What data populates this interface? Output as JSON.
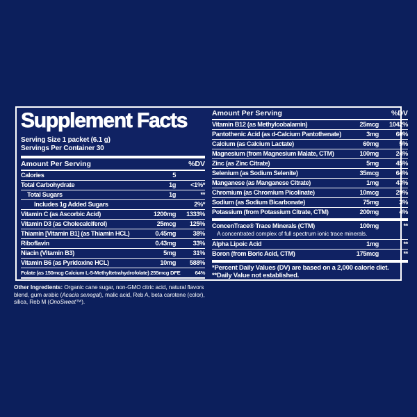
{
  "colors": {
    "background": "#0c1f5c",
    "panel_background": "#102263",
    "border_and_rules": "#ffffff",
    "text": "#ffffff"
  },
  "label": {
    "title": "Supplement Facts",
    "serving_size": "Serving Size 1 packet (6.1 g)",
    "servings_per_container": "Servings Per Container 30",
    "left_table": {
      "amount_header": "Amount Per Serving",
      "dv_header": "%DV",
      "rows": [
        {
          "name": "Calories",
          "amount": "5",
          "dv": ""
        },
        {
          "name": "Total Carbohydrate",
          "amount": "1g",
          "dv": "<1%*"
        },
        {
          "name": "Total Sugars",
          "amount": "1g",
          "dv": "**",
          "indent": 1
        },
        {
          "name": "Includes 1g Added Sugars",
          "amount": "",
          "dv": "2%*",
          "indent": 2
        },
        {
          "name": "Vitamin C (as Ascorbic Acid)",
          "amount": "1200mg",
          "dv": "1333%"
        },
        {
          "name": "Vitamin D3 (as Cholecalciferol)",
          "amount": "25mcg",
          "dv": "125%"
        },
        {
          "name": "Thiamin [Vitamin B1] (as Thiamin HCL)",
          "amount": "0.45mg",
          "dv": "38%"
        },
        {
          "name": "Riboflavin",
          "amount": "0.43mg",
          "dv": "33%"
        },
        {
          "name": "Niacin (Vitamin B3)",
          "amount": "5mg",
          "dv": "31%"
        },
        {
          "name": "Vitamin B6 (as Pyridoxine HCL)",
          "amount": "10mg",
          "dv": "588%"
        },
        {
          "name": "Folate (as 150mcg Calcium L-5-Methyltetrahydrofolate) 255mcg DFE",
          "amount": "",
          "dv": "64%",
          "small": true
        }
      ]
    },
    "right_table": {
      "amount_header": "Amount Per Serving",
      "dv_header": "%DV",
      "rows": [
        {
          "name": "Vitamin B12 (as Methylcobalamin)",
          "amount": "25mcg",
          "dv": "1042%"
        },
        {
          "name": "Pantothenic Acid (as d-Calcium Pantothenate)",
          "amount": "3mg",
          "dv": "60%"
        },
        {
          "name": "Calcium (as Calcium Lactate)",
          "amount": "60mg",
          "dv": "5%"
        },
        {
          "name": "Magnesium (from Magnesium Malate, CTM)",
          "amount": "100mg",
          "dv": "24%"
        },
        {
          "name": "Zinc (as Zinc Citrate)",
          "amount": "5mg",
          "dv": "45%"
        },
        {
          "name": "Selenium (as Sodium Selenite)",
          "amount": "35mcg",
          "dv": "64%"
        },
        {
          "name": "Manganese (as Manganese Citrate)",
          "amount": "1mg",
          "dv": "43%"
        },
        {
          "name": "Chromium (as Chromium Picolinate)",
          "amount": "10mcg",
          "dv": "29%"
        },
        {
          "name": "Sodium (as Sodium Bicarbonate)",
          "amount": "75mg",
          "dv": "3%"
        },
        {
          "name": "Potassium (from Potassium Citrate, CTM)",
          "amount": "200mg",
          "dv": "4%"
        },
        {
          "name": "ConcenTrace® Trace Minerals (CTM)",
          "amount": "100mg",
          "dv": "**",
          "sep": "thick",
          "note": "A concentrated complex of full spectrum ionic trace minerals."
        },
        {
          "name": "Alpha Lipoic Acid",
          "amount": "1mg",
          "dv": "**"
        },
        {
          "name": "Boron (from Boric Acid, CTM)",
          "amount": "175mcg",
          "dv": "**"
        }
      ],
      "footnote_dv": "*Percent Daily Values (DV) are based on a 2,000 calorie diet.",
      "footnote_nd": "**Daily Value not established."
    },
    "other_ingredients": {
      "segments": [
        {
          "text": "Other Ingredients:",
          "bold": true
        },
        {
          "text": " Organic cane sugar, non-GMO citric acid, natural flavors blend, gum arabic ("
        },
        {
          "text": "Acacia senegal",
          "italic": true
        },
        {
          "text": "), malic acid, Reb A, beta carotene (color), silica, Reb M ("
        },
        {
          "text": "OnoSweet™",
          "italic": true
        },
        {
          "text": ")."
        }
      ]
    }
  }
}
